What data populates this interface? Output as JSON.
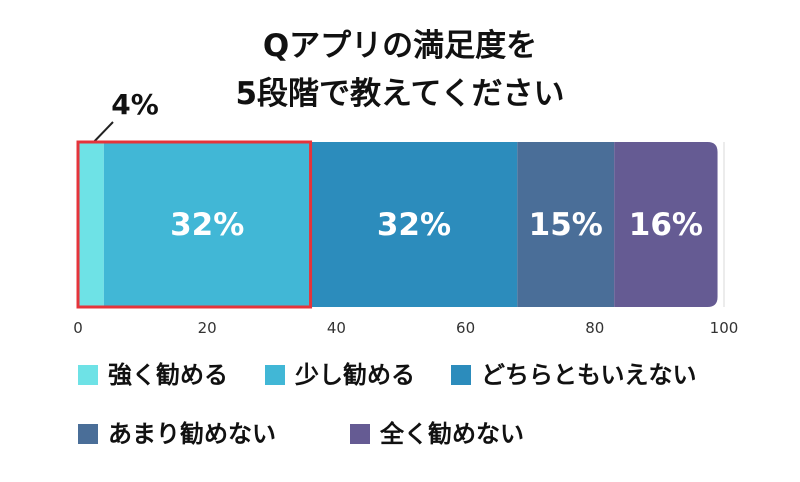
{
  "chart_data": {
    "type": "bar",
    "orientation": "horizontal-stacked",
    "title_lines": [
      "Qアプリの満足度を",
      "5段階で教えてください"
    ],
    "series": [
      {
        "name": "強く勧める",
        "value": 4,
        "label": "",
        "color": "#6ee2e6"
      },
      {
        "name": "少し勧める",
        "value": 32,
        "label": "32%",
        "color": "#41b7d6"
      },
      {
        "name": "どちらともいえない",
        "value": 32,
        "label": "32%",
        "color": "#2c8cbc"
      },
      {
        "name": "あまり勧めない",
        "value": 15,
        "label": "15%",
        "color": "#4a6e98"
      },
      {
        "name": "全く勧めない",
        "value": 16,
        "label": "16%",
        "color": "#655b93"
      }
    ],
    "callout": {
      "label": "4%",
      "series_index": 0
    },
    "highlight": {
      "from": 0,
      "to": 36,
      "color": "#e5343b"
    },
    "xlim": [
      0,
      100
    ],
    "xticks": [
      "0",
      "20",
      "40",
      "60",
      "80",
      "100"
    ],
    "legend_position": "bottom",
    "grid": false
  }
}
